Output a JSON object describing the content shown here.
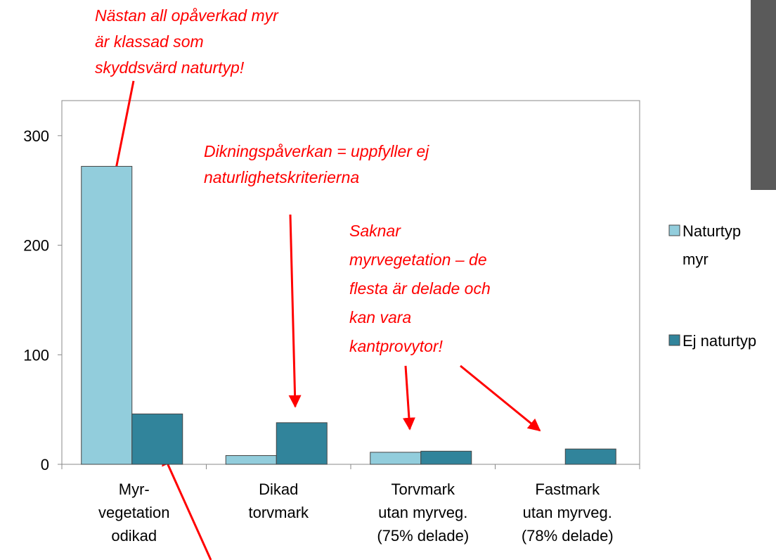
{
  "chart_data": {
    "type": "bar",
    "categories": [
      "Myr-\nvegetation\nodikad",
      "Dikad\ntorvmark",
      "Torvmark\nutan myrveg.\n(75% delade)",
      "Fastmark\nutan myrveg.\n(78% delade)"
    ],
    "series": [
      {
        "name": "Naturtyp\nmyr",
        "color": "#92cddc",
        "values": [
          272,
          8,
          11,
          0
        ]
      },
      {
        "name": "Ej naturtyp",
        "color": "#31849b",
        "values": [
          46,
          38,
          12,
          14
        ]
      }
    ],
    "ylim": [
      0,
      332
    ],
    "yticks": [
      0,
      100,
      200,
      300
    ],
    "grid": false,
    "legend": "right",
    "annotations": [
      "Nästan all opåverkad myr\när klassad som\nskyddsvärd naturtyp!",
      "Dikningspåverkan = uppfyller ej\nnaturlighetskriterierna",
      "Saknar\nmyrvegetation – de\nflesta är delade och\nkan vara\nkantprovytor!"
    ]
  }
}
